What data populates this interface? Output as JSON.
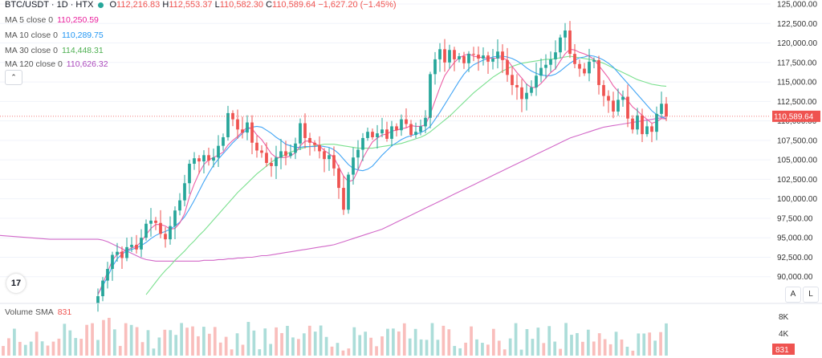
{
  "header": {
    "symbol": "BTC/USDT · 1D · HTX",
    "open_label": "O",
    "open": "112,216.83",
    "high_label": "H",
    "high": "112,553.37",
    "low_label": "L",
    "low": "110,582.30",
    "close_label": "C",
    "close": "110,589.64",
    "change": "−1,627.20 (−1.45%)"
  },
  "indicators": [
    {
      "label": "MA 5 close 0",
      "value": "110,250.59",
      "color": "#e91e9c"
    },
    {
      "label": "MA 10 close 0",
      "value": "110,289.75",
      "color": "#2196f3"
    },
    {
      "label": "MA 30 close 0",
      "value": "114,448.31",
      "color": "#4caf50"
    },
    {
      "label": "MA 120 close 0",
      "value": "110,626.32",
      "color": "#ab47bc"
    }
  ],
  "volume": {
    "label": "Volume SMA",
    "value": "831",
    "axis_labels": [
      "8K",
      "4K"
    ],
    "last_label": "831"
  },
  "controls": {
    "collapse": "⌃",
    "auto": "A",
    "log": "L",
    "logo": "17"
  },
  "chart_data": {
    "type": "candlestick",
    "y_axis": {
      "min": 87500,
      "max": 125000,
      "ticks": [
        "125,000.00",
        "122,500.00",
        "120,000.00",
        "117,500.00",
        "115,000.00",
        "112,500.00",
        "110,000.00",
        "107,500.00",
        "105,000.00",
        "102,500.00",
        "100,000.00",
        "97,500.00",
        "95,000.00",
        "92,500.00",
        "90,000.00"
      ]
    },
    "last_price": {
      "value": 110589.64,
      "label": "110,589.64",
      "color": "#ef5350"
    },
    "up_color": "#26a69a",
    "down_color": "#ef5350",
    "candles_close": [
      87500,
      89500,
      91000,
      92800,
      93200,
      92400,
      93800,
      94100,
      93500,
      95000,
      96800,
      97200,
      96900,
      95500,
      94800,
      96500,
      98500,
      99800,
      102000,
      104500,
      105200,
      104800,
      105600,
      104900,
      105300,
      106800,
      107900,
      111000,
      110200,
      108900,
      108500,
      109800,
      107200,
      106200,
      105900,
      104600,
      104200,
      105300,
      106100,
      105500,
      105900,
      107100,
      109700,
      107800,
      107200,
      106900,
      106100,
      105100,
      105600,
      103900,
      101400,
      98600,
      103100,
      105300,
      106300,
      107800,
      108600,
      107900,
      108400,
      108900,
      107700,
      109300,
      108800,
      110200,
      109600,
      108200,
      108600,
      109300,
      110400,
      116000,
      117900,
      119200,
      117500,
      119100,
      117900,
      118300,
      117400,
      118600,
      118500,
      118000,
      118400,
      117600,
      118000,
      118900,
      117800,
      115900,
      114600,
      114300,
      112800,
      113600,
      114300,
      115800,
      116800,
      117200,
      117900,
      118800,
      120700,
      121600,
      118600,
      117300,
      116700,
      116100,
      117600,
      117800,
      114600,
      113200,
      112600,
      111200,
      112700,
      113100,
      110300,
      108900,
      110700,
      108300,
      109300,
      108600,
      110900,
      112200,
      110590
    ],
    "ma5": [
      87700,
      89100,
      90600,
      92100,
      92900,
      93200,
      93400,
      93700,
      93900,
      94500,
      95400,
      96200,
      96700,
      96700,
      96500,
      96100,
      96200,
      96900,
      98100,
      100300,
      101900,
      103300,
      104400,
      105000,
      105300,
      105600,
      106000,
      106900,
      107500,
      108000,
      108600,
      109200,
      109000,
      108200,
      107600,
      106700,
      105800,
      105300,
      105300,
      105300,
      105500,
      105900,
      106800,
      107400,
      107400,
      107100,
      106800,
      106200,
      105800,
      105300,
      104100,
      102900,
      102200,
      102400,
      103700,
      105200,
      106300,
      107300,
      107800,
      108200,
      108300,
      108700,
      108800,
      109000,
      109100,
      109400,
      109300,
      109300,
      109500,
      110900,
      112600,
      114300,
      115800,
      116700,
      117500,
      118100,
      118400,
      118600,
      118300,
      118200,
      118100,
      118100,
      118000,
      118100,
      118100,
      117800,
      117000,
      116200,
      115500,
      114700,
      114300,
      114300,
      114800,
      115500,
      116200,
      116700,
      117700,
      118600,
      119200,
      119100,
      118800,
      118600,
      118300,
      117900,
      117100,
      116300,
      115500,
      114500,
      113800,
      113100,
      112600,
      111800,
      111300,
      110700,
      110200,
      109700,
      109900,
      110300,
      110250
    ],
    "ma10": [
      87800,
      88800,
      90000,
      91300,
      92300,
      92900,
      93300,
      93500,
      93700,
      94000,
      94400,
      94900,
      95300,
      95600,
      95800,
      96100,
      96500,
      97000,
      97700,
      98700,
      99800,
      101000,
      102200,
      103300,
      104300,
      105100,
      105800,
      106500,
      107200,
      107800,
      108400,
      108900,
      109200,
      109300,
      109200,
      108800,
      108400,
      107900,
      107500,
      107000,
      106800,
      106600,
      106600,
      106700,
      106700,
      106700,
      106800,
      106700,
      106600,
      106300,
      105800,
      105100,
      104400,
      103900,
      103700,
      103600,
      103800,
      104200,
      104900,
      105600,
      106200,
      106800,
      107200,
      107600,
      107900,
      108100,
      108300,
      108500,
      108800,
      109300,
      110200,
      111100,
      112100,
      113100,
      114100,
      115100,
      116000,
      116700,
      117200,
      117500,
      117800,
      118000,
      118200,
      118300,
      118300,
      118200,
      118000,
      117700,
      117300,
      116800,
      116400,
      116100,
      115900,
      115800,
      115800,
      116000,
      116400,
      116900,
      117400,
      117800,
      118100,
      118200,
      118400,
      118300,
      118100,
      117800,
      117400,
      116900,
      116200,
      115500,
      114800,
      114100,
      113400,
      112700,
      112000,
      111300,
      110800,
      110500,
      110290
    ],
    "ma30": [
      null,
      null,
      null,
      null,
      null,
      null,
      null,
      null,
      null,
      null,
      87700,
      88500,
      89300,
      90100,
      90800,
      91400,
      92100,
      92700,
      93300,
      94000,
      94600,
      95300,
      95900,
      96600,
      97300,
      98000,
      98700,
      99400,
      100100,
      100800,
      101400,
      102000,
      102600,
      103200,
      103700,
      104200,
      104700,
      105100,
      105400,
      105700,
      106000,
      106200,
      106400,
      106600,
      106700,
      106800,
      106900,
      107000,
      107000,
      107000,
      106900,
      106800,
      106700,
      106600,
      106500,
      106500,
      106500,
      106500,
      106600,
      106700,
      106800,
      106900,
      107000,
      107100,
      107300,
      107500,
      107700,
      107900,
      108200,
      108600,
      109100,
      109600,
      110100,
      110600,
      111200,
      111800,
      112400,
      113000,
      113600,
      114100,
      114600,
      115100,
      115600,
      116000,
      116400,
      116700,
      117000,
      117200,
      117400,
      117500,
      117600,
      117700,
      117800,
      117900,
      117900,
      118000,
      118100,
      118200,
      118300,
      118200,
      118100,
      118000,
      117900,
      117800,
      117600,
      117400,
      117100,
      116800,
      116500,
      116200,
      115900,
      115600,
      115300,
      115100,
      114900,
      114700,
      114600,
      114500,
      114450
    ],
    "ma120": [
      94800,
      94700,
      94500,
      94200,
      93900,
      93600,
      93300,
      93000,
      92700,
      92400,
      92200,
      92100,
      92000,
      92000,
      92000,
      92000,
      92000,
      92000,
      92000,
      92000,
      92000,
      92000,
      92100,
      92100,
      92100,
      92200,
      92200,
      92300,
      92300,
      92400,
      92400,
      92500,
      92500,
      92600,
      92700,
      92700,
      92800,
      92900,
      93000,
      93100,
      93200,
      93300,
      93400,
      93500,
      93600,
      93700,
      93800,
      93900,
      94000,
      94100,
      94300,
      94500,
      94700,
      94900,
      95100,
      95300,
      95500,
      95700,
      95900,
      96100,
      96400,
      96700,
      97000,
      97300,
      97600,
      97900,
      98200,
      98500,
      98800,
      99100,
      99400,
      99700,
      100000,
      100300,
      100600,
      100900,
      101200,
      101500,
      101800,
      102100,
      102400,
      102700,
      103000,
      103300,
      103600,
      103900,
      104200,
      104500,
      104800,
      105100,
      105400,
      105700,
      106000,
      106300,
      106600,
      106900,
      107200,
      107500,
      107800,
      108000,
      108200,
      108400,
      108600,
      108800,
      109000,
      109200,
      109300,
      109400,
      109500,
      109600,
      109700,
      109800,
      109900,
      110000,
      110100,
      110200,
      110300,
      110400,
      110626
    ]
  }
}
